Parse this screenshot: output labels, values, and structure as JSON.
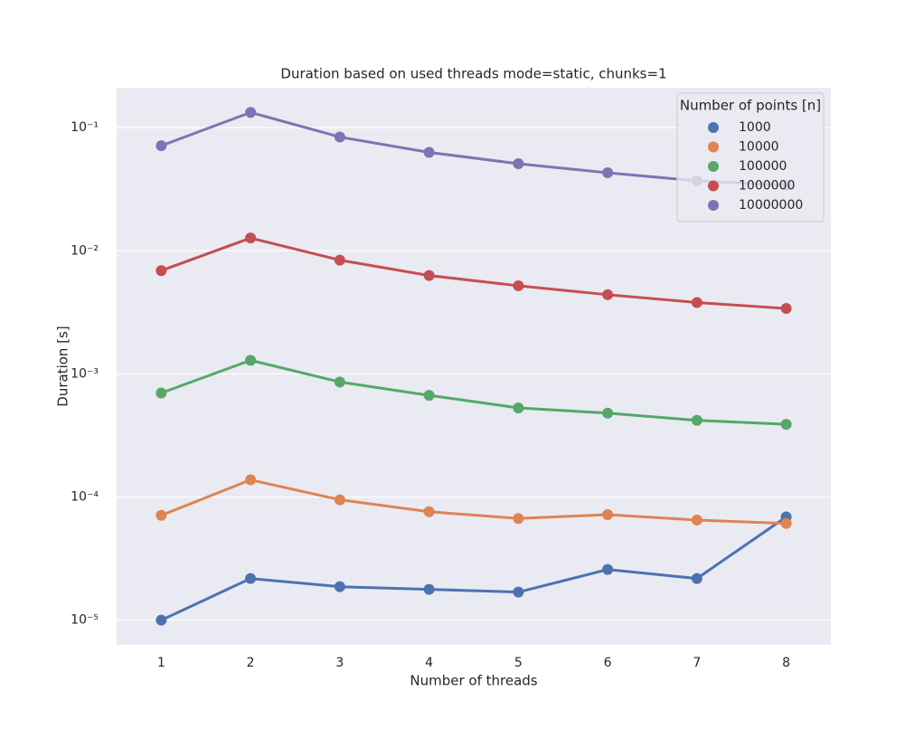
{
  "chart_data": {
    "type": "line",
    "title": "Duration based on used threads mode=static, chunks=1",
    "x_label": "Number of threads",
    "y_label": "Duration [s]",
    "categories": [
      "1",
      "2",
      "3",
      "4",
      "5",
      "6",
      "7",
      "8"
    ],
    "y_log_scale": true,
    "ylim": [
      6.3e-06,
      0.211
    ],
    "yticks": [
      {
        "value": 1e-05,
        "label": "10⁻⁵"
      },
      {
        "value": 0.0001,
        "label": "10⁻⁴"
      },
      {
        "value": 0.001,
        "label": "10⁻³"
      },
      {
        "value": 0.01,
        "label": "10⁻²"
      },
      {
        "value": 0.1,
        "label": "10⁻¹"
      }
    ],
    "grid": true,
    "legend_title": "Number of points [n]",
    "legend_position": "upper-right",
    "series": [
      {
        "name": "1000",
        "color": "#4c72b0",
        "values": [
          1e-05,
          2.18e-05,
          1.87e-05,
          1.78e-05,
          1.69e-05,
          2.58e-05,
          2.18e-05,
          6.9e-05
        ]
      },
      {
        "name": "10000",
        "color": "#dd8452",
        "values": [
          7.1e-05,
          0.000138,
          9.5e-05,
          7.6e-05,
          6.7e-05,
          7.2e-05,
          6.5e-05,
          6.1e-05
        ]
      },
      {
        "name": "100000",
        "color": "#55a868",
        "values": [
          0.0007,
          0.00129,
          0.00086,
          0.00067,
          0.00053,
          0.00048,
          0.00042,
          0.00039
        ]
      },
      {
        "name": "1000000",
        "color": "#c44e52",
        "values": [
          0.0069,
          0.0127,
          0.0084,
          0.0063,
          0.0052,
          0.0044,
          0.0038,
          0.0034
        ]
      },
      {
        "name": "10000000",
        "color": "#8172b3",
        "values": [
          0.0713,
          0.133,
          0.084,
          0.063,
          0.051,
          0.043,
          0.037,
          0.034
        ]
      }
    ]
  }
}
